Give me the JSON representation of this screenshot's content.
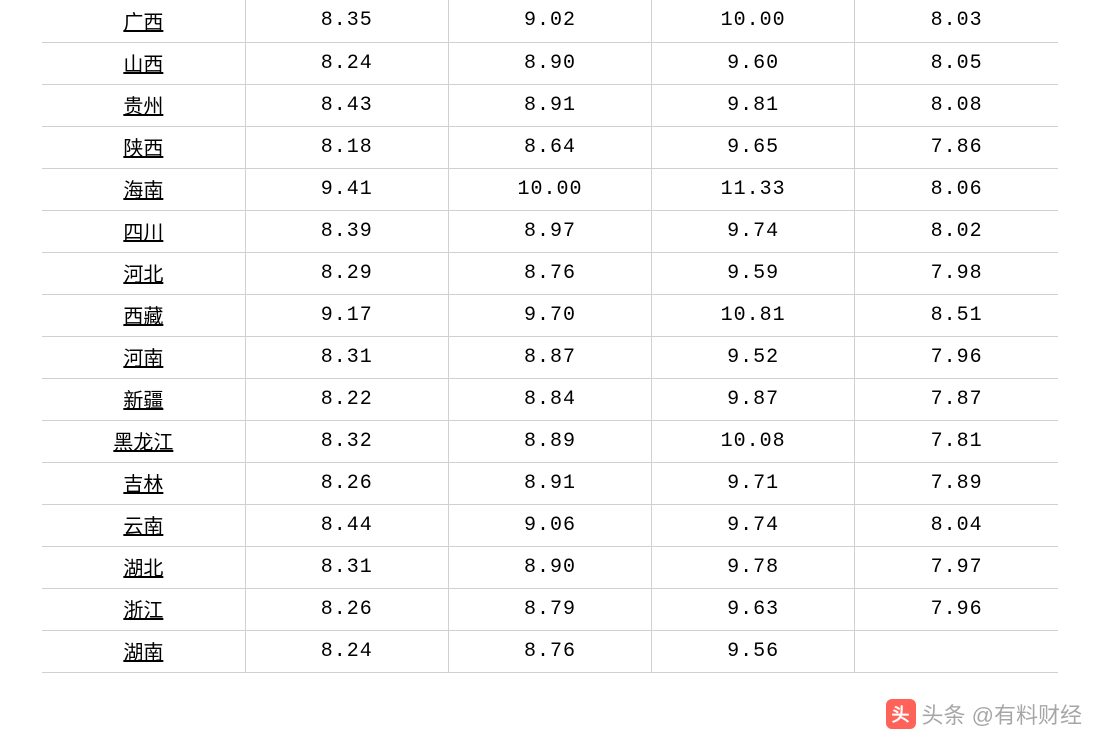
{
  "table": {
    "border_color": "#d0d0d0",
    "text_color": "#000000",
    "background_color": "#ffffff",
    "font_family": "SimSun",
    "font_size_pt": 15,
    "column_count": 5,
    "column_widths_pct": [
      20,
      20,
      20,
      20,
      20
    ],
    "province_underline": true,
    "rows": [
      {
        "province": "广西",
        "v1": "8.35",
        "v2": "9.02",
        "v3": "10.00",
        "v4": "8.03"
      },
      {
        "province": "山西",
        "v1": "8.24",
        "v2": "8.90",
        "v3": "9.60",
        "v4": "8.05"
      },
      {
        "province": "贵州",
        "v1": "8.43",
        "v2": "8.91",
        "v3": "9.81",
        "v4": "8.08"
      },
      {
        "province": "陕西",
        "v1": "8.18",
        "v2": "8.64",
        "v3": "9.65",
        "v4": "7.86"
      },
      {
        "province": "海南",
        "v1": "9.41",
        "v2": "10.00",
        "v3": "11.33",
        "v4": "8.06"
      },
      {
        "province": "四川",
        "v1": "8.39",
        "v2": "8.97",
        "v3": "9.74",
        "v4": "8.02"
      },
      {
        "province": "河北",
        "v1": "8.29",
        "v2": "8.76",
        "v3": "9.59",
        "v4": "7.98"
      },
      {
        "province": "西藏",
        "v1": "9.17",
        "v2": "9.70",
        "v3": "10.81",
        "v4": "8.51"
      },
      {
        "province": "河南",
        "v1": "8.31",
        "v2": "8.87",
        "v3": "9.52",
        "v4": "7.96"
      },
      {
        "province": "新疆",
        "v1": "8.22",
        "v2": "8.84",
        "v3": "9.87",
        "v4": "7.87"
      },
      {
        "province": "黑龙江",
        "v1": "8.32",
        "v2": "8.89",
        "v3": "10.08",
        "v4": "7.81"
      },
      {
        "province": "吉林",
        "v1": "8.26",
        "v2": "8.91",
        "v3": "9.71",
        "v4": "7.89"
      },
      {
        "province": "云南",
        "v1": "8.44",
        "v2": "9.06",
        "v3": "9.74",
        "v4": "8.04"
      },
      {
        "province": "湖北",
        "v1": "8.31",
        "v2": "8.90",
        "v3": "9.78",
        "v4": "7.97"
      },
      {
        "province": "浙江",
        "v1": "8.26",
        "v2": "8.79",
        "v3": "9.63",
        "v4": "7.96"
      },
      {
        "province": "湖南",
        "v1": "8.24",
        "v2": "8.76",
        "v3": "9.56",
        "v4": ""
      }
    ]
  },
  "watermark": {
    "logo_glyph": "头",
    "text": "头条 @有料财经",
    "color": "rgba(0,0,0,0.35)",
    "logo_bg": "#ff3b30"
  }
}
